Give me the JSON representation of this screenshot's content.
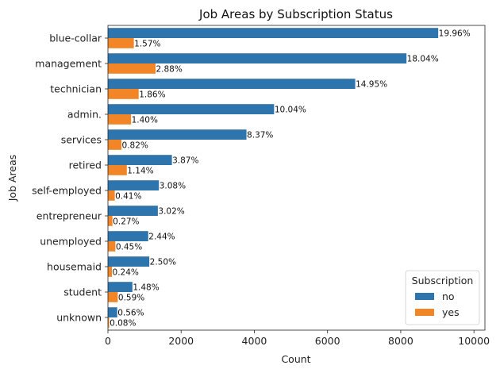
{
  "chart_data": {
    "type": "bar",
    "orientation": "horizontal",
    "title": "Job Areas by Subscription Status",
    "xlabel": "Count",
    "ylabel": "Job Areas",
    "xlim": [
      0,
      10300
    ],
    "xticks": [
      0,
      2000,
      4000,
      6000,
      8000,
      10000
    ],
    "xtick_labels": [
      "0",
      "2000",
      "4000",
      "6000",
      "8000",
      "10000"
    ],
    "grid": false,
    "legend": {
      "title": "Subscription",
      "placement": "bottom-right"
    },
    "categories": [
      "blue-collar",
      "management",
      "technician",
      "admin.",
      "services",
      "retired",
      "self-employed",
      "entrepreneur",
      "unemployed",
      "housemaid",
      "student",
      "unknown"
    ],
    "series": [
      {
        "name": "no",
        "color": "#2e75ae",
        "values": [
          9024,
          8157,
          6757,
          4540,
          3785,
          1748,
          1392,
          1364,
          1101,
          1131,
          669,
          254
        ],
        "labels": [
          "19.96%",
          "18.04%",
          "14.95%",
          "10.04%",
          "8.37%",
          "3.87%",
          "3.08%",
          "3.02%",
          "2.44%",
          "2.50%",
          "1.48%",
          "0.56%"
        ]
      },
      {
        "name": "yes",
        "color": "#f28526",
        "values": [
          708,
          1301,
          840,
          631,
          369,
          516,
          187,
          123,
          202,
          109,
          269,
          34
        ],
        "labels": [
          "1.57%",
          "2.88%",
          "1.86%",
          "1.40%",
          "0.82%",
          "1.14%",
          "0.41%",
          "0.27%",
          "0.45%",
          "0.24%",
          "0.59%",
          "0.08%"
        ]
      }
    ]
  }
}
